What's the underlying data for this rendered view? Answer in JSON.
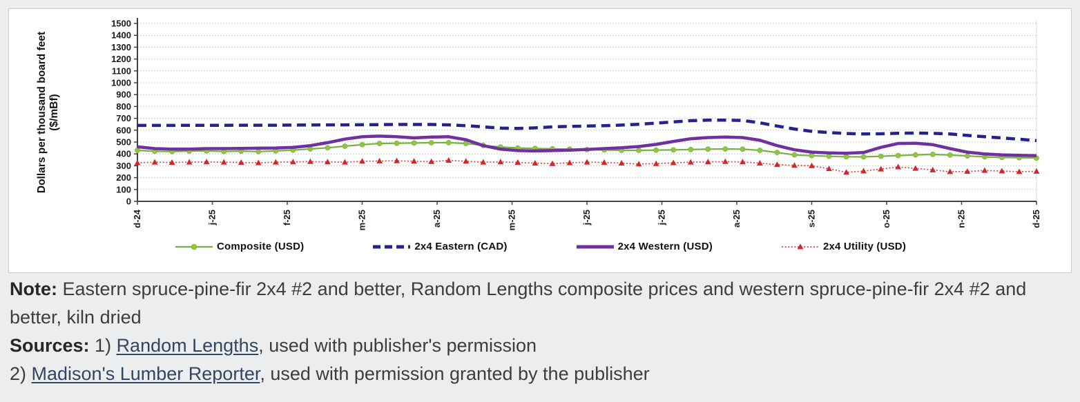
{
  "texts": {
    "note_prefix": "Note:",
    "note_body": " Eastern spruce-pine-fir 2x4 #2 and better, Random Lengths composite prices and western spruce-pine-fir 2x4 #2 and better, kiln dried",
    "sources_prefix": "Sources:",
    "source1_pre": " 1) ",
    "source1_link": "Random Lengths",
    "source1_post": ", used with publisher's permission",
    "source2_pre": "2) ",
    "source2_link": "Madison's Lumber Reporter",
    "source2_post": ", used with permission granted by the publisher"
  },
  "chart_data": {
    "type": "line",
    "title": "",
    "ylabel_line1": "Dollars per thousand board feet",
    "ylabel_line2": "($/mBf)",
    "ylim": [
      0,
      1500
    ],
    "y_ticks": [
      0,
      100,
      200,
      300,
      400,
      500,
      600,
      700,
      800,
      900,
      1000,
      1100,
      1200,
      1300,
      1400,
      1500
    ],
    "x_tick_labels": [
      "d-24",
      "j-25",
      "f-25",
      "m-25",
      "a-25",
      "m-25",
      "j-25",
      "j-25",
      "a-25",
      "s-25",
      "o-25",
      "n-25",
      "d-25"
    ],
    "grid": "horizontal-dotted",
    "legend_position": "bottom",
    "axis_color": "#404040",
    "grid_color": "#c0c0c0",
    "series": [
      {
        "name": "Composite (USD)",
        "style": "solid-marker",
        "marker": "circle",
        "color": "#76b041",
        "marker_color": "#8ec63f",
        "values": [
          430,
          422,
          420,
          424,
          425,
          421,
          424,
          420,
          425,
          432,
          442,
          452,
          465,
          478,
          488,
          490,
          492,
          494,
          495,
          488,
          472,
          458,
          450,
          446,
          443,
          440,
          436,
          433,
          430,
          430,
          432,
          434,
          437,
          440,
          442,
          440,
          430,
          412,
          392,
          385,
          380,
          376,
          375,
          380,
          386,
          392,
          396,
          390,
          383,
          375,
          370,
          368,
          365
        ]
      },
      {
        "name": "2x4 Eastern (CAD)",
        "style": "dashed",
        "marker": "none",
        "color": "#23238c",
        "values": [
          640,
          640,
          640,
          641,
          641,
          641,
          642,
          642,
          642,
          643,
          644,
          645,
          645,
          646,
          647,
          648,
          648,
          648,
          645,
          638,
          628,
          618,
          615,
          620,
          628,
          632,
          635,
          638,
          643,
          650,
          660,
          670,
          680,
          685,
          685,
          682,
          662,
          635,
          610,
          590,
          580,
          572,
          568,
          570,
          574,
          576,
          574,
          568,
          556,
          545,
          535,
          524,
          512
        ]
      },
      {
        "name": "2x4 Western (USD)",
        "style": "solid-thick",
        "marker": "none",
        "color": "#7030a0",
        "values": [
          460,
          445,
          440,
          440,
          445,
          445,
          446,
          448,
          450,
          455,
          470,
          495,
          525,
          545,
          550,
          545,
          535,
          542,
          545,
          520,
          470,
          440,
          428,
          425,
          428,
          432,
          438,
          445,
          452,
          462,
          480,
          505,
          528,
          538,
          542,
          538,
          515,
          470,
          435,
          415,
          408,
          405,
          412,
          455,
          488,
          490,
          478,
          445,
          415,
          400,
          392,
          388,
          385
        ]
      },
      {
        "name": "2x4 Utility (USD)",
        "style": "dotted-marker",
        "marker": "triangle",
        "color": "#e04040",
        "marker_color": "#d02828",
        "values": [
          325,
          330,
          328,
          330,
          332,
          330,
          328,
          325,
          330,
          332,
          335,
          332,
          330,
          338,
          340,
          342,
          338,
          335,
          345,
          338,
          330,
          332,
          328,
          322,
          318,
          325,
          330,
          328,
          322,
          315,
          318,
          325,
          330,
          332,
          335,
          332,
          322,
          310,
          303,
          300,
          275,
          245,
          255,
          272,
          290,
          278,
          265,
          250,
          252,
          260,
          256,
          250,
          253
        ]
      }
    ]
  }
}
